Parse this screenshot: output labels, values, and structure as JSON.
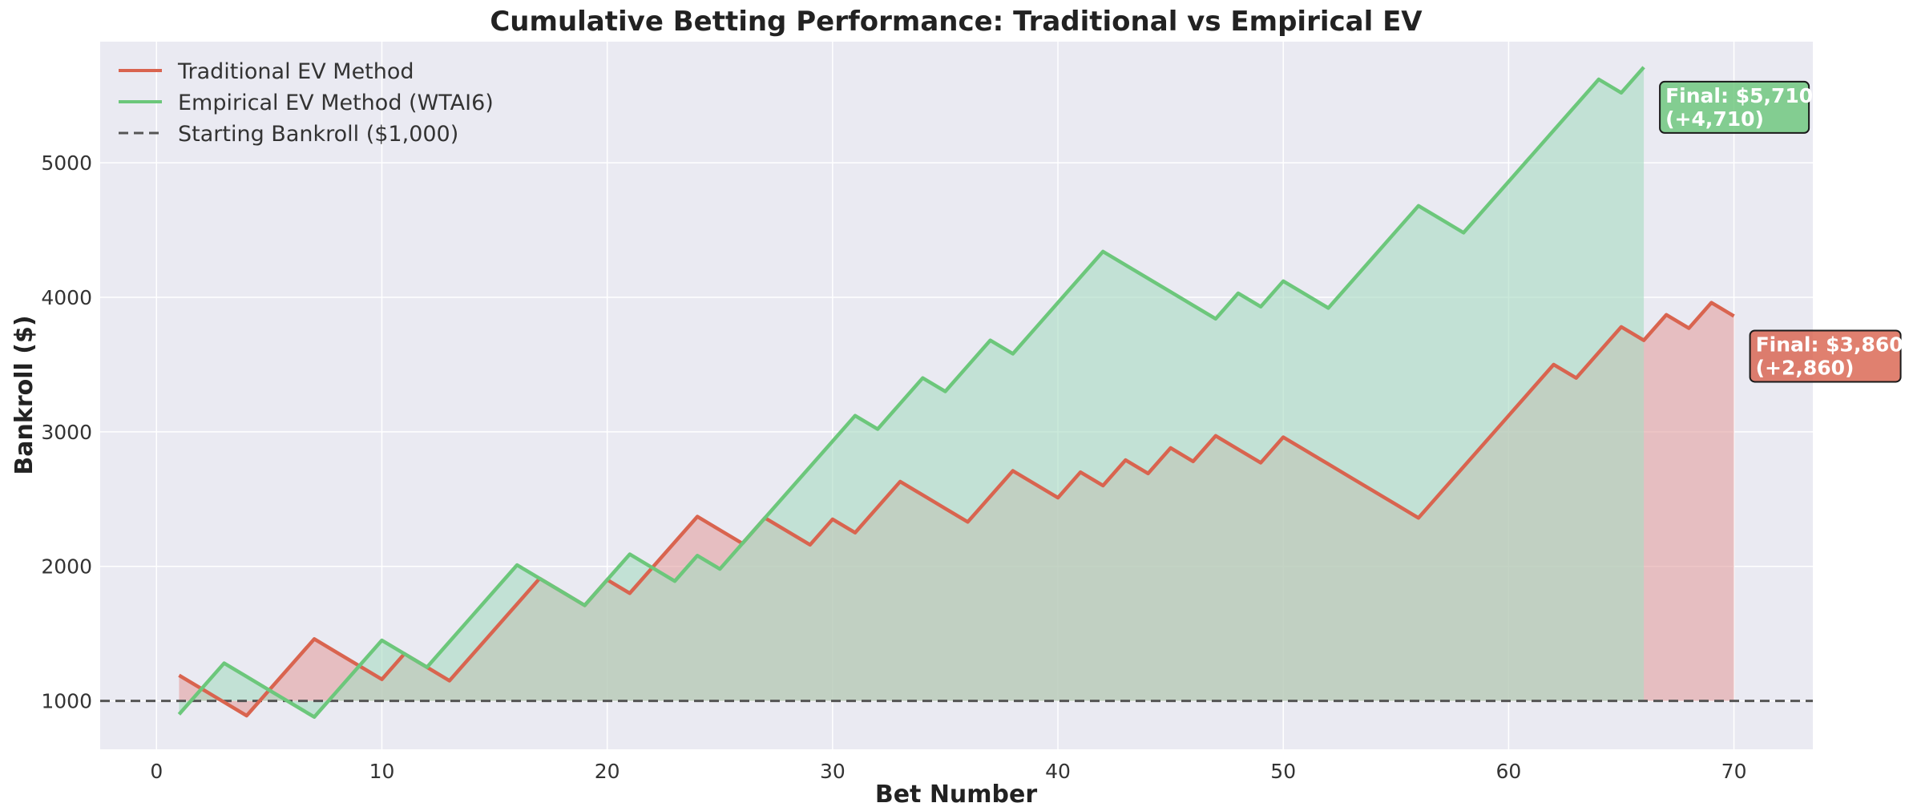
{
  "chart_data": {
    "type": "line",
    "title": "Cumulative Betting Performance: Traditional vs Empirical EV",
    "xlabel": "Bet Number",
    "ylabel": "Bankroll ($)",
    "xlim": [
      -2.5,
      73.5
    ],
    "ylim": [
      640,
      5900
    ],
    "xticks": [
      0,
      10,
      20,
      30,
      40,
      50,
      60,
      70
    ],
    "yticks": [
      1000,
      2000,
      3000,
      4000,
      5000
    ],
    "grid": true,
    "legend_position": "top-left",
    "baseline": {
      "name": "Starting Bankroll ($1,000)",
      "value": 1000,
      "color": "#555555",
      "style": "dashed"
    },
    "series": [
      {
        "name": "Traditional EV Method",
        "color": "#d9644f",
        "fill": "#e3a3a3",
        "x": [
          1,
          2,
          3,
          4,
          5,
          6,
          7,
          8,
          9,
          10,
          11,
          12,
          13,
          14,
          15,
          16,
          17,
          18,
          19,
          20,
          21,
          22,
          23,
          24,
          25,
          26,
          27,
          28,
          29,
          30,
          31,
          32,
          33,
          34,
          35,
          36,
          37,
          38,
          39,
          40,
          41,
          42,
          43,
          44,
          45,
          46,
          47,
          48,
          49,
          50,
          51,
          52,
          53,
          54,
          55,
          56,
          57,
          58,
          59,
          60,
          61,
          62,
          63,
          64,
          65,
          66,
          67,
          68,
          69,
          70
        ],
        "y": [
          1190,
          1090,
          990,
          890,
          1080,
          1270,
          1460,
          1360,
          1260,
          1160,
          1350,
          1250,
          1150,
          1340,
          1530,
          1720,
          1910,
          1810,
          1710,
          1900,
          1800,
          1990,
          2180,
          2370,
          2270,
          2170,
          2360,
          2260,
          2160,
          2350,
          2250,
          2440,
          2630,
          2530,
          2430,
          2330,
          2520,
          2710,
          2610,
          2510,
          2700,
          2600,
          2790,
          2690,
          2880,
          2780,
          2970,
          2870,
          2770,
          2960,
          2860,
          2760,
          2660,
          2560,
          2460,
          2360,
          2550,
          2740,
          2930,
          3120,
          3310,
          3500,
          3400,
          3590,
          3780,
          3680,
          3870,
          3770,
          3960,
          3860
        ]
      },
      {
        "name": "Empirical EV Method (WTAI6)",
        "color": "#6cc77b",
        "fill": "#a9dcc3",
        "x": [
          1,
          2,
          3,
          4,
          5,
          6,
          7,
          8,
          9,
          10,
          11,
          12,
          13,
          14,
          15,
          16,
          17,
          18,
          19,
          20,
          21,
          22,
          23,
          24,
          25,
          26,
          27,
          28,
          29,
          30,
          31,
          32,
          33,
          34,
          35,
          36,
          37,
          38,
          39,
          40,
          41,
          42,
          43,
          44,
          45,
          46,
          47,
          48,
          49,
          50,
          51,
          52,
          53,
          54,
          55,
          56,
          57,
          58,
          59,
          60,
          61,
          62,
          63,
          64,
          65,
          66
        ],
        "y": [
          900,
          1090,
          1280,
          1180,
          1080,
          980,
          880,
          1070,
          1260,
          1450,
          1350,
          1250,
          1440,
          1630,
          1820,
          2010,
          1910,
          1810,
          1710,
          1900,
          2090,
          1990,
          1890,
          2080,
          1980,
          2170,
          2360,
          2550,
          2740,
          2930,
          3120,
          3020,
          3210,
          3400,
          3300,
          3490,
          3680,
          3580,
          3770,
          3960,
          4150,
          4340,
          4240,
          4140,
          4040,
          3940,
          3840,
          4030,
          3930,
          4120,
          4020,
          3920,
          4110,
          4300,
          4490,
          4680,
          4580,
          4480,
          4670,
          4860,
          5050,
          5240,
          5430,
          5620,
          5520,
          5710
        ]
      }
    ],
    "annotations": [
      {
        "line1": "Final: $5,710",
        "line2": "(+4,710)",
        "x": 66,
        "y": 5710,
        "color": "#6cc77b"
      },
      {
        "line1": "Final: $3,860",
        "line2": "(+2,860)",
        "x": 70,
        "y": 3860,
        "color": "#d9644f"
      }
    ]
  }
}
